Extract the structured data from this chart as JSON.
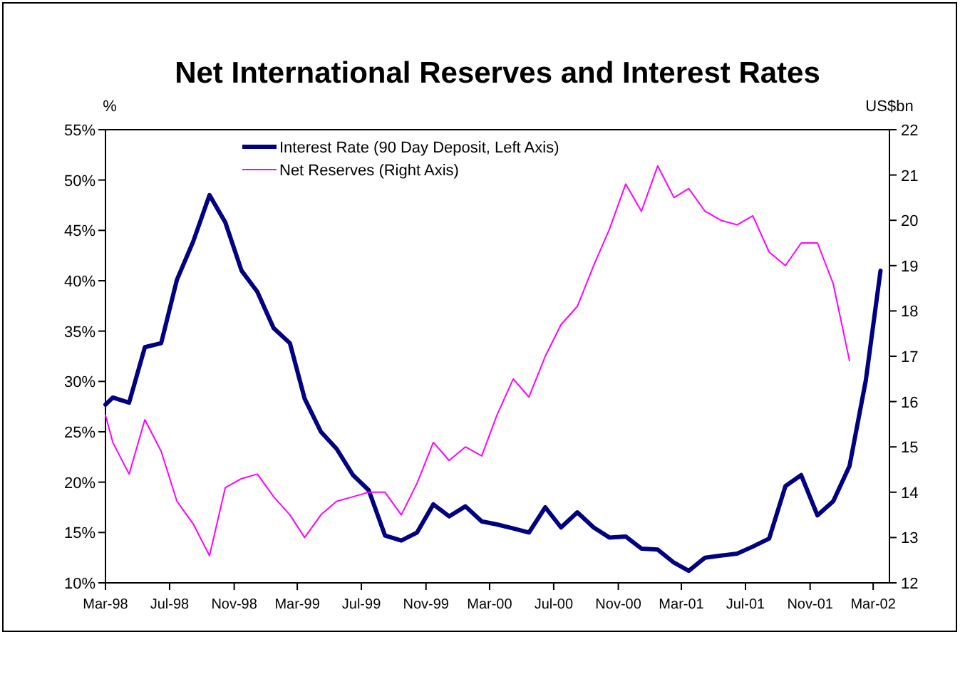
{
  "chart_data": {
    "type": "line",
    "title": "Net International Reserves and Interest Rates",
    "ylabel": "%",
    "y2label": "US$bn",
    "x": [
      "1998-03-01",
      "1998-03-15",
      "1998-04-15",
      "1998-05-15",
      "1998-06-15",
      "1998-07-15",
      "1998-08-15",
      "1998-09-15",
      "1998-10-15",
      "1998-11-15",
      "1998-12-15",
      "1999-01-15",
      "1999-02-15",
      "1999-03-15",
      "1999-04-15",
      "1999-05-15",
      "1999-06-15",
      "1999-07-15",
      "1999-08-15",
      "1999-09-15",
      "1999-10-15",
      "1999-11-15",
      "1999-12-15",
      "2000-01-15",
      "2000-02-15",
      "2000-03-15",
      "2000-04-15",
      "2000-05-15",
      "2000-06-15",
      "2000-07-15",
      "2000-08-15",
      "2000-09-15",
      "2000-10-15",
      "2000-11-15",
      "2000-12-15",
      "2001-01-15",
      "2001-02-15",
      "2001-03-15",
      "2001-04-15",
      "2001-05-15",
      "2001-06-15",
      "2001-07-15",
      "2001-08-15",
      "2001-09-15",
      "2001-10-15",
      "2001-11-15",
      "2001-12-15",
      "2002-01-15",
      "2002-02-15",
      "2002-03-15"
    ],
    "series": [
      {
        "name": "Interest Rate (90 Day Deposit, Left Axis)",
        "color": "#000080",
        "values": [
          27.7,
          28.4,
          27.9,
          33.4,
          33.8,
          40.1,
          43.9,
          48.5,
          45.8,
          41.0,
          38.9,
          35.3,
          33.8,
          28.3,
          25.0,
          23.3,
          20.7,
          19.2,
          14.7,
          14.2,
          15.0,
          17.8,
          16.6,
          17.6,
          16.1,
          15.8,
          15.4,
          15.0,
          17.5,
          15.5,
          17.0,
          15.5,
          14.5,
          14.6,
          13.4,
          13.3,
          12.0,
          11.2,
          12.5,
          12.7,
          12.9,
          13.6,
          14.4,
          19.6,
          20.7,
          16.7,
          18.1,
          21.6,
          30.1,
          41.0
        ]
      },
      {
        "name": "Net Reserves (Right Axis)",
        "color": "#ff00ff",
        "axis": "y2",
        "values": [
          15.7,
          15.1,
          14.4,
          15.6,
          14.9,
          13.8,
          13.3,
          12.6,
          14.1,
          14.3,
          14.4,
          13.9,
          13.5,
          13.0,
          13.5,
          13.8,
          13.9,
          14.0,
          14.0,
          13.5,
          14.2,
          15.1,
          14.7,
          15.0,
          14.8,
          15.7,
          16.5,
          16.1,
          17.0,
          17.7,
          18.1,
          19.0,
          19.8,
          20.8,
          20.2,
          21.2,
          20.5,
          20.7,
          20.2,
          20.0,
          19.9,
          20.1,
          19.3,
          19.0,
          19.5,
          19.5,
          18.6,
          16.9,
          null,
          null
        ]
      }
    ],
    "xlim": [
      "1998-03-01",
      "2002-04-01"
    ],
    "xticks": [
      {
        "value": "1998-03",
        "label": "Mar-98"
      },
      {
        "value": "1998-07",
        "label": "Jul-98"
      },
      {
        "value": "1998-11",
        "label": "Nov-98"
      },
      {
        "value": "1999-03",
        "label": "Mar-99"
      },
      {
        "value": "1999-07",
        "label": "Jul-99"
      },
      {
        "value": "1999-11",
        "label": "Nov-99"
      },
      {
        "value": "2000-03",
        "label": "Mar-00"
      },
      {
        "value": "2000-07",
        "label": "Jul-00"
      },
      {
        "value": "2000-11",
        "label": "Nov-00"
      },
      {
        "value": "2001-03",
        "label": "Mar-01"
      },
      {
        "value": "2001-07",
        "label": "Jul-01"
      },
      {
        "value": "2001-11",
        "label": "Nov-01"
      },
      {
        "value": "2002-03",
        "label": "Mar-02"
      }
    ],
    "ylim": [
      10,
      55
    ],
    "yticks": [
      {
        "value": 10,
        "label": "10%"
      },
      {
        "value": 15,
        "label": "15%"
      },
      {
        "value": 20,
        "label": "20%"
      },
      {
        "value": 25,
        "label": "25%"
      },
      {
        "value": 30,
        "label": "30%"
      },
      {
        "value": 35,
        "label": "35%"
      },
      {
        "value": 40,
        "label": "40%"
      },
      {
        "value": 45,
        "label": "45%"
      },
      {
        "value": 50,
        "label": "50%"
      },
      {
        "value": 55,
        "label": "55%"
      }
    ],
    "y2lim": [
      12,
      22
    ],
    "y2ticks": [
      12,
      13,
      14,
      15,
      16,
      17,
      18,
      19,
      20,
      21,
      22
    ],
    "grid": false,
    "legend": "top",
    "marker": "none",
    "line_style": "solid"
  }
}
